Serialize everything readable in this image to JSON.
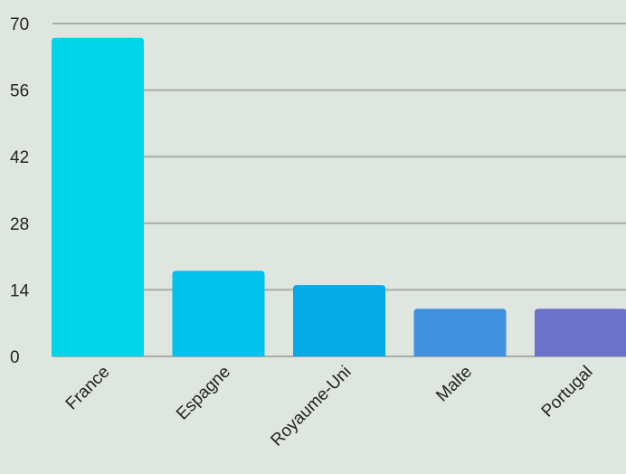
{
  "chart_data": {
    "type": "bar",
    "categories": [
      "France",
      "Espagne",
      "Royaume-Uni",
      "Malte",
      "Portugal"
    ],
    "values": [
      67,
      18,
      15,
      10,
      10
    ],
    "yticks": [
      0,
      14,
      28,
      42,
      56,
      70
    ],
    "ylim": [
      0,
      70
    ],
    "grid": true,
    "legend": "none",
    "title": "",
    "xlabel": "",
    "ylabel": "",
    "colors": [
      "#00d4e8",
      "#00c2ee",
      "#03abe9",
      "#3f91e0",
      "#6a72c9"
    ],
    "background": "#dfe6df",
    "gridColor": "#a8aca8",
    "textColor": "#222222"
  }
}
